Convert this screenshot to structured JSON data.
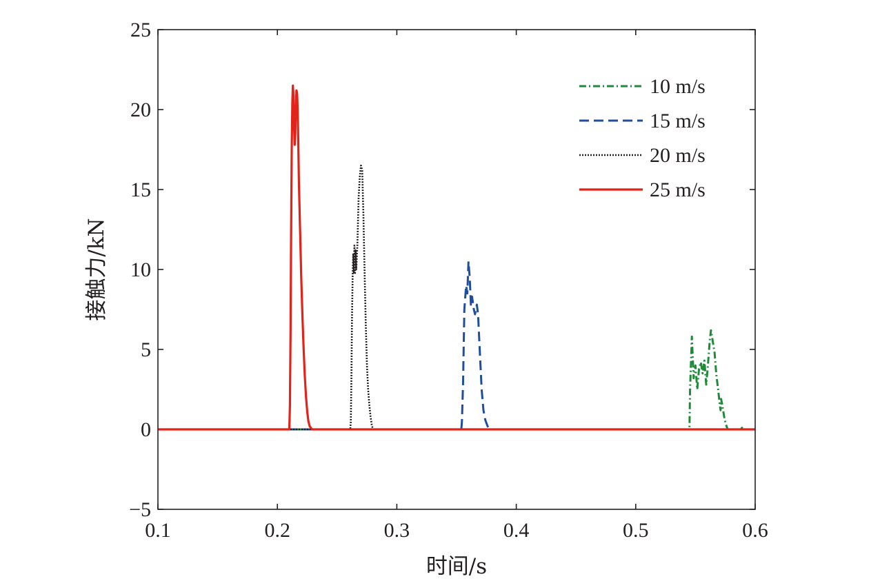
{
  "chart_data": {
    "type": "line",
    "title": "",
    "xlabel": "时间/s",
    "ylabel": "接触力/kN",
    "xlim": [
      0.1,
      0.6
    ],
    "ylim": [
      -5,
      25
    ],
    "xticks": [
      0.1,
      0.2,
      0.3,
      0.4,
      0.5,
      0.6
    ],
    "xtick_labels": [
      "0.1",
      "0.2",
      "0.3",
      "0.4",
      "0.5",
      "0.6"
    ],
    "yticks": [
      -5,
      0,
      5,
      10,
      15,
      20,
      25
    ],
    "ytick_labels": [
      "−5",
      "0",
      "5",
      "10",
      "15",
      "20",
      "25"
    ],
    "grid": false,
    "legend_position": "top-right",
    "series": [
      {
        "name": "10 m/s",
        "color": "#1e8a3a",
        "dash": "dashdot",
        "points": [
          [
            0.1,
            0
          ],
          [
            0.545,
            0
          ],
          [
            0.5455,
            2.5
          ],
          [
            0.547,
            5.8
          ],
          [
            0.5485,
            3.2
          ],
          [
            0.55,
            4.0
          ],
          [
            0.5515,
            2.5
          ],
          [
            0.553,
            3.8
          ],
          [
            0.5545,
            4.2
          ],
          [
            0.556,
            3.5
          ],
          [
            0.5575,
            4.3
          ],
          [
            0.559,
            2.8
          ],
          [
            0.56,
            3.6
          ],
          [
            0.561,
            4.6
          ],
          [
            0.562,
            5.6
          ],
          [
            0.563,
            6.2
          ],
          [
            0.5645,
            5.5
          ],
          [
            0.566,
            4.8
          ],
          [
            0.5675,
            3.4
          ],
          [
            0.569,
            2.5
          ],
          [
            0.57,
            1.8
          ],
          [
            0.571,
            1.2
          ],
          [
            0.5715,
            1.9
          ],
          [
            0.5725,
            1.5
          ],
          [
            0.574,
            0.8
          ],
          [
            0.5755,
            0.3
          ],
          [
            0.577,
            0
          ],
          [
            0.588,
            0
          ],
          [
            0.589,
            0.1
          ],
          [
            0.59,
            0
          ],
          [
            0.6,
            0
          ]
        ]
      },
      {
        "name": "15 m/s",
        "color": "#1f4e9e",
        "dash": "dashed",
        "points": [
          [
            0.1,
            0
          ],
          [
            0.354,
            0
          ],
          [
            0.3545,
            0.5
          ],
          [
            0.3555,
            3.0
          ],
          [
            0.3565,
            7.5
          ],
          [
            0.358,
            9.0
          ],
          [
            0.359,
            8.5
          ],
          [
            0.36,
            10.5
          ],
          [
            0.361,
            9.5
          ],
          [
            0.362,
            7.8
          ],
          [
            0.363,
            8.3
          ],
          [
            0.3645,
            7.5
          ],
          [
            0.3655,
            7.2
          ],
          [
            0.367,
            7.8
          ],
          [
            0.368,
            7.2
          ],
          [
            0.3695,
            4.8
          ],
          [
            0.371,
            2.5
          ],
          [
            0.3725,
            1.2
          ],
          [
            0.374,
            0.6
          ],
          [
            0.376,
            0.2
          ],
          [
            0.378,
            0
          ],
          [
            0.6,
            0
          ]
        ]
      },
      {
        "name": "20 m/s",
        "color": "#231f20",
        "dash": "dotted",
        "points": [
          [
            0.1,
            0
          ],
          [
            0.261,
            0
          ],
          [
            0.2615,
            0.5
          ],
          [
            0.262,
            3.5
          ],
          [
            0.2625,
            7.0
          ],
          [
            0.263,
            9.5
          ],
          [
            0.2635,
            11.0
          ],
          [
            0.264,
            9.8
          ],
          [
            0.2645,
            11.5
          ],
          [
            0.265,
            9.7
          ],
          [
            0.2655,
            11.2
          ],
          [
            0.266,
            10.0
          ],
          [
            0.267,
            11.5
          ],
          [
            0.2675,
            13.0
          ],
          [
            0.268,
            14.5
          ],
          [
            0.269,
            15.8
          ],
          [
            0.27,
            16.5
          ],
          [
            0.271,
            16.2
          ],
          [
            0.272,
            13.5
          ],
          [
            0.273,
            10.0
          ],
          [
            0.274,
            6.5
          ],
          [
            0.275,
            4.0
          ],
          [
            0.276,
            2.5
          ],
          [
            0.277,
            1.5
          ],
          [
            0.278,
            0.8
          ],
          [
            0.279,
            0.3
          ],
          [
            0.28,
            0
          ],
          [
            0.6,
            0
          ]
        ]
      },
      {
        "name": "25 m/s",
        "color": "#e2231a",
        "dash": "solid",
        "points": [
          [
            0.1,
            0
          ],
          [
            0.21,
            0
          ],
          [
            0.2105,
            1.5
          ],
          [
            0.211,
            6.0
          ],
          [
            0.2115,
            12.0
          ],
          [
            0.212,
            17.5
          ],
          [
            0.2125,
            20.5
          ],
          [
            0.213,
            21.5
          ],
          [
            0.2135,
            20.8
          ],
          [
            0.214,
            19.0
          ],
          [
            0.2145,
            17.8
          ],
          [
            0.215,
            18.5
          ],
          [
            0.2155,
            20.2
          ],
          [
            0.216,
            21.2
          ],
          [
            0.2165,
            21.0
          ],
          [
            0.217,
            20.0
          ],
          [
            0.2175,
            18.0
          ],
          [
            0.218,
            15.5
          ],
          [
            0.219,
            12.5
          ],
          [
            0.22,
            9.5
          ],
          [
            0.221,
            7.0
          ],
          [
            0.222,
            5.0
          ],
          [
            0.223,
            3.3
          ],
          [
            0.224,
            2.0
          ],
          [
            0.225,
            1.1
          ],
          [
            0.226,
            0.5
          ],
          [
            0.227,
            0.2
          ],
          [
            0.229,
            0
          ],
          [
            0.6,
            0
          ]
        ]
      }
    ]
  }
}
